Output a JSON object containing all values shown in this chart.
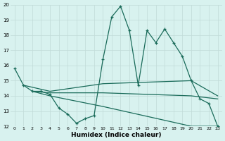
{
  "xlabel": "Humidex (Indice chaleur)",
  "xlim": [
    -0.5,
    23.5
  ],
  "ylim": [
    12,
    20
  ],
  "yticks": [
    12,
    13,
    14,
    15,
    16,
    17,
    18,
    19,
    20
  ],
  "xticks": [
    0,
    1,
    2,
    3,
    4,
    5,
    6,
    7,
    8,
    9,
    10,
    11,
    12,
    13,
    14,
    15,
    16,
    17,
    18,
    19,
    20,
    21,
    22,
    23
  ],
  "background_color": "#d8f2ef",
  "grid_color": "#c0dbd7",
  "line_color": "#1a6b5a",
  "series_main": [
    [
      0,
      15.8
    ],
    [
      1,
      14.7
    ],
    [
      2,
      14.3
    ],
    [
      3,
      14.3
    ],
    [
      4,
      14.1
    ],
    [
      5,
      13.2
    ],
    [
      6,
      12.8
    ],
    [
      7,
      12.2
    ],
    [
      8,
      12.5
    ],
    [
      9,
      12.7
    ],
    [
      10,
      16.4
    ],
    [
      11,
      19.2
    ],
    [
      12,
      19.9
    ],
    [
      13,
      18.3
    ],
    [
      14,
      14.7
    ],
    [
      15,
      18.3
    ],
    [
      16,
      17.5
    ],
    [
      17,
      18.4
    ],
    [
      18,
      17.5
    ],
    [
      19,
      16.6
    ],
    [
      20,
      15.0
    ],
    [
      21,
      13.8
    ],
    [
      22,
      13.5
    ],
    [
      23,
      12.0
    ]
  ],
  "series2": [
    [
      1,
      14.7
    ],
    [
      4,
      14.3
    ],
    [
      10,
      14.8
    ],
    [
      20,
      15.0
    ],
    [
      23,
      14.0
    ]
  ],
  "series3": [
    [
      2,
      14.3
    ],
    [
      4,
      14.2
    ],
    [
      10,
      14.2
    ],
    [
      20,
      14.0
    ],
    [
      23,
      13.8
    ]
  ],
  "series4": [
    [
      2,
      14.3
    ],
    [
      4,
      14.0
    ],
    [
      10,
      13.3
    ],
    [
      20,
      12.0
    ],
    [
      23,
      12.0
    ]
  ]
}
